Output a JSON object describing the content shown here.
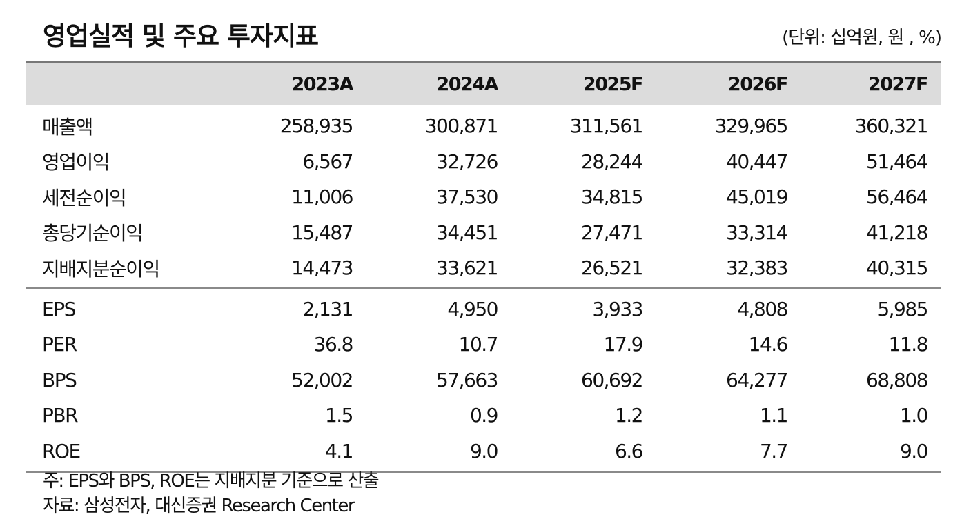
{
  "title": "영업실적 및 주요 투자지표",
  "unit": "(단위: 십억원, 원 , %)",
  "columns": [
    "2023A",
    "2024A",
    "2025F",
    "2026F",
    "2027F"
  ],
  "section1": [
    {
      "label": "매출액",
      "values": [
        "258,935",
        "300,871",
        "311,561",
        "329,965",
        "360,321"
      ]
    },
    {
      "label": "영업이익",
      "values": [
        "6,567",
        "32,726",
        "28,244",
        "40,447",
        "51,464"
      ]
    },
    {
      "label": "세전순이익",
      "values": [
        "11,006",
        "37,530",
        "34,815",
        "45,019",
        "56,464"
      ]
    },
    {
      "label": "총당기순이익",
      "values": [
        "15,487",
        "34,451",
        "27,471",
        "33,314",
        "41,218"
      ]
    },
    {
      "label": "지배지분순이익",
      "values": [
        "14,473",
        "33,621",
        "26,521",
        "32,383",
        "40,315"
      ]
    }
  ],
  "section2": [
    {
      "label": "EPS",
      "values": [
        "2,131",
        "4,950",
        "3,933",
        "4,808",
        "5,985"
      ]
    },
    {
      "label": "PER",
      "values": [
        "36.8",
        "10.7",
        "17.9",
        "14.6",
        "11.8"
      ]
    },
    {
      "label": "BPS",
      "values": [
        "52,002",
        "57,663",
        "60,692",
        "64,277",
        "68,808"
      ]
    },
    {
      "label": "PBR",
      "values": [
        "1.5",
        "0.9",
        "1.2",
        "1.1",
        "1.0"
      ]
    },
    {
      "label": "ROE",
      "values": [
        "4.1",
        "9.0",
        "6.6",
        "7.7",
        "9.0"
      ]
    }
  ],
  "notes": {
    "note": "주: EPS와 BPS, ROE는 지배지분 기준으로 산출",
    "source": "자료: 삼성전자, 대신증권 Research Center"
  }
}
